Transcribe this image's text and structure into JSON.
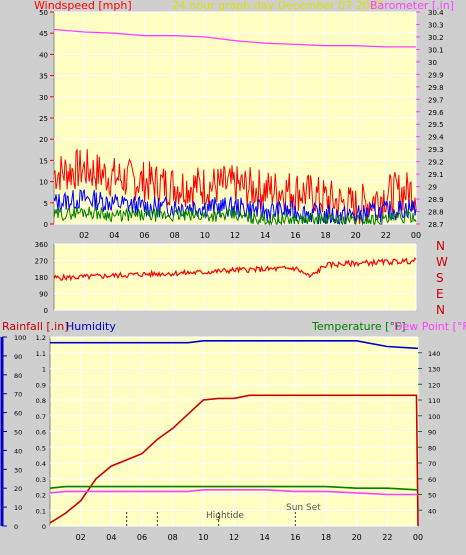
{
  "header": {
    "wind_label": "Windspeed [mph]",
    "title": "24 hour graph day   December 07 2022",
    "baro_label": "Barometer [.in]"
  },
  "colors": {
    "background": "#cfcfcf",
    "plot_bg": "#ffffc4",
    "wind_gust": "#ff0000",
    "wind_avg": "#0000ff",
    "wind_low": "#008000",
    "barometer": "#ff40ff",
    "title": "#e0e000",
    "grid": "#ffffff",
    "temperature": "#008000",
    "dew_point": "#ff40ff",
    "humidity": "#0000cc",
    "rainfall": "#cc0000",
    "axis_tick": "#ff0000"
  },
  "time_axis": [
    "02",
    "04",
    "06",
    "08",
    "10",
    "12",
    "14",
    "16",
    "18",
    "20",
    "22",
    "00"
  ],
  "compass_labels": [
    "N",
    "W",
    "S",
    "E",
    "N"
  ],
  "lower_header": {
    "rain_label": "Rainfall [.in]",
    "humidity_label": "Humidity",
    "temp_label": "Temperature [°F]",
    "dew_label": "Dew Point [°F]"
  },
  "markers": {
    "hightide_label": "Hightide",
    "sunset_label": "Sun Set"
  },
  "chart_data": [
    {
      "type": "line",
      "y_left": {
        "label": "Windspeed [mph]",
        "ylim": [
          0,
          50
        ],
        "ticks": [
          0,
          5,
          10,
          15,
          20,
          25,
          30,
          35,
          40,
          45,
          50
        ]
      },
      "y_right": {
        "label": "Barometer [.in]",
        "ylim": [
          28.7,
          30.4
        ],
        "ticks": [
          "28.7",
          "28.8",
          "28.9",
          "29",
          "29.1",
          "29.2",
          "29.3",
          "29.4",
          "29.5",
          "29.6",
          "29.7",
          "29.8",
          "29.9",
          "30",
          "30.1",
          "30.2",
          "30.3",
          "30.4"
        ]
      },
      "x_hours": [
        0,
        2,
        4,
        6,
        8,
        10,
        12,
        14,
        16,
        18,
        20,
        22,
        24
      ],
      "series": [
        {
          "name": "Windspeed [mph]",
          "role": "gust",
          "axis": "left",
          "values": [
            12,
            13,
            11,
            10,
            9,
            9,
            9,
            8,
            8,
            6,
            4,
            7,
            8
          ]
        },
        {
          "role": "average",
          "axis": "left",
          "values": [
            5,
            6,
            5,
            4,
            4,
            4,
            4,
            3,
            3,
            2,
            2,
            3,
            4
          ]
        },
        {
          "role": "low",
          "axis": "left",
          "values": [
            2,
            3,
            2,
            2,
            2,
            2,
            2,
            1,
            1,
            1,
            1,
            1,
            2
          ]
        },
        {
          "name": "Barometer [.in]",
          "axis": "right",
          "values": [
            30.26,
            30.24,
            30.23,
            30.21,
            30.21,
            30.2,
            30.17,
            30.15,
            30.14,
            30.13,
            30.13,
            30.12,
            30.12
          ]
        }
      ]
    },
    {
      "type": "line",
      "ylim": [
        0,
        360
      ],
      "ticks": [
        0,
        90,
        180,
        270,
        360
      ],
      "x_hours": [
        0,
        2,
        4,
        6,
        8,
        10,
        12,
        14,
        16,
        17,
        18,
        20,
        22,
        24
      ],
      "series": [
        {
          "values": [
            175,
            180,
            188,
            195,
            200,
            206,
            218,
            222,
            228,
            180,
            245,
            255,
            262,
            268
          ]
        }
      ]
    },
    {
      "type": "line",
      "y_rain": {
        "label": "Rainfall [.in]",
        "ylim": [
          0,
          1.2
        ],
        "ticks": [
          "0",
          "0.1",
          "0.2",
          "0.3",
          "0.4",
          "0.5",
          "0.6",
          "0.7",
          "0.8",
          "0.9",
          "1",
          "1.1",
          "1.2"
        ]
      },
      "y_humidity": {
        "label": "Humidity",
        "ylim": [
          0,
          100
        ],
        "ticks": [
          0,
          10,
          20,
          30,
          40,
          50,
          60,
          70,
          80,
          90,
          100
        ]
      },
      "y_temp": {
        "label": "Temperature [°F]",
        "ylim": [
          30,
          150
        ],
        "ticks": [
          40,
          50,
          60,
          70,
          80,
          90,
          100,
          110,
          120,
          130,
          140
        ]
      },
      "x_hours": [
        0,
        1,
        2,
        3,
        4,
        5,
        6,
        7,
        8,
        9,
        10,
        11,
        12,
        13,
        14,
        16,
        18,
        20,
        22,
        23.9,
        24
      ],
      "series": [
        {
          "name": "Humidity",
          "axis": "humidity",
          "values": [
            97,
            97,
            97,
            97,
            97,
            97,
            97,
            97,
            97,
            97,
            98,
            98,
            98,
            98,
            98,
            98,
            98,
            98,
            95,
            94,
            94
          ]
        },
        {
          "name": "Rainfall [.in]",
          "axis": "rain",
          "values": [
            0.02,
            0.08,
            0.16,
            0.3,
            0.38,
            0.42,
            0.46,
            0.55,
            0.62,
            0.71,
            0.8,
            0.81,
            0.81,
            0.83,
            0.83,
            0.83,
            0.83,
            0.83,
            0.83,
            0.83,
            0.0
          ]
        },
        {
          "name": "Temperature [°F]",
          "axis": "temp",
          "values": [
            54,
            55,
            55,
            55,
            55,
            55,
            55,
            55,
            55,
            55,
            55,
            55,
            55,
            55,
            55,
            55,
            55,
            54,
            54,
            53,
            53
          ]
        },
        {
          "name": "Dew Point [°F]",
          "axis": "temp",
          "values": [
            51,
            52,
            52,
            52,
            52,
            52,
            52,
            52,
            52,
            52,
            53,
            53,
            53,
            53,
            53,
            52,
            52,
            51,
            50,
            50,
            50
          ]
        }
      ],
      "annotations": [
        {
          "label": "Hightide",
          "hour": 11
        },
        {
          "label": "Sun Set",
          "hour": 16
        }
      ]
    }
  ]
}
